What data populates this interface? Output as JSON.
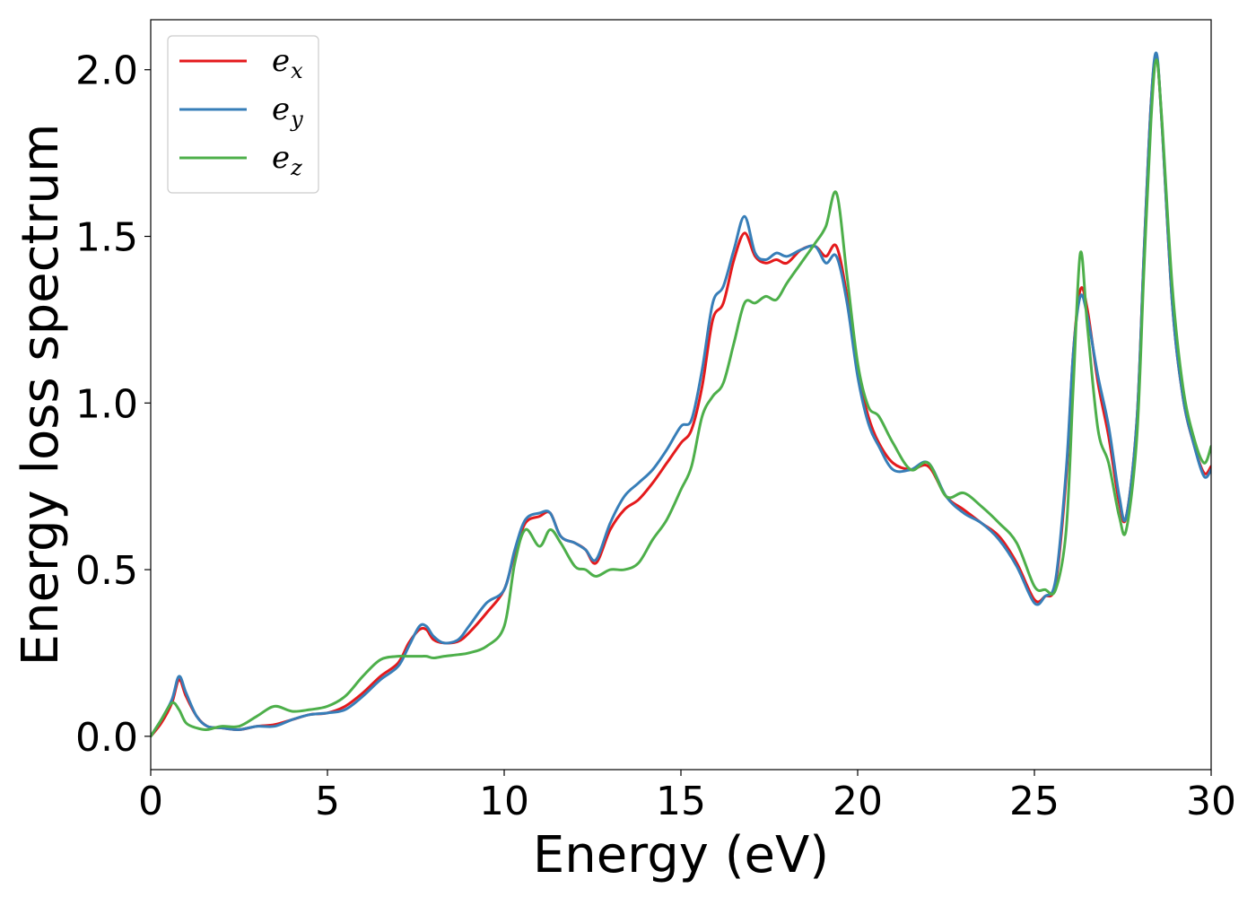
{
  "chart_data": {
    "type": "line",
    "xlabel": "Energy (eV)",
    "ylabel": "Energy loss spectrum",
    "xlim": [
      0,
      30
    ],
    "ylim": [
      -0.1,
      2.15
    ],
    "xticks": [
      0,
      5,
      10,
      15,
      20,
      25,
      30
    ],
    "xtick_labels": [
      "0",
      "5",
      "10",
      "15",
      "20",
      "25",
      "30"
    ],
    "yticks": [
      0.0,
      0.5,
      1.0,
      1.5,
      2.0
    ],
    "ytick_labels": [
      "0.0",
      "0.5",
      "1.0",
      "1.5",
      "2.0"
    ],
    "grid": false,
    "legend_position": "top-left",
    "series": [
      {
        "name": "e",
        "subscript": "x",
        "color": "#e41a1c",
        "x": [
          0,
          0.3,
          0.6,
          0.8,
          1.0,
          1.3,
          1.6,
          2.0,
          2.5,
          3.0,
          3.5,
          4.0,
          4.5,
          5.0,
          5.5,
          6.0,
          6.5,
          7.0,
          7.3,
          7.6,
          7.8,
          8.0,
          8.3,
          8.7,
          9.0,
          9.5,
          10.0,
          10.3,
          10.6,
          11.0,
          11.3,
          11.6,
          12.0,
          12.3,
          12.6,
          13.0,
          13.4,
          13.8,
          14.2,
          14.6,
          15.0,
          15.3,
          15.6,
          15.9,
          16.2,
          16.5,
          16.8,
          17.1,
          17.4,
          17.7,
          18.0,
          18.4,
          18.8,
          19.1,
          19.4,
          19.7,
          20.0,
          20.3,
          20.6,
          21.0,
          21.5,
          22.0,
          22.5,
          23.0,
          23.5,
          24.0,
          24.5,
          25.0,
          25.3,
          25.6,
          25.9,
          26.1,
          26.3,
          26.5,
          26.8,
          27.1,
          27.4,
          27.6,
          27.9,
          28.1,
          28.3,
          28.45,
          28.6,
          28.9,
          29.2,
          29.5,
          29.8,
          30.0
        ],
        "y": [
          0.0,
          0.04,
          0.1,
          0.17,
          0.12,
          0.06,
          0.03,
          0.025,
          0.02,
          0.03,
          0.035,
          0.05,
          0.065,
          0.07,
          0.09,
          0.13,
          0.18,
          0.22,
          0.28,
          0.32,
          0.32,
          0.29,
          0.28,
          0.285,
          0.31,
          0.37,
          0.44,
          0.55,
          0.64,
          0.66,
          0.67,
          0.6,
          0.58,
          0.56,
          0.52,
          0.62,
          0.68,
          0.71,
          0.76,
          0.82,
          0.88,
          0.92,
          1.05,
          1.25,
          1.3,
          1.43,
          1.51,
          1.44,
          1.42,
          1.43,
          1.42,
          1.46,
          1.47,
          1.44,
          1.47,
          1.32,
          1.1,
          0.96,
          0.88,
          0.82,
          0.8,
          0.81,
          0.72,
          0.68,
          0.64,
          0.6,
          0.52,
          0.41,
          0.42,
          0.46,
          0.78,
          1.15,
          1.34,
          1.28,
          1.06,
          0.9,
          0.7,
          0.66,
          0.95,
          1.45,
          1.9,
          2.04,
          1.85,
          1.3,
          1.02,
          0.88,
          0.79,
          0.81
        ]
      },
      {
        "name": "e",
        "subscript": "y",
        "color": "#377eb8",
        "x": [
          0,
          0.3,
          0.6,
          0.8,
          1.0,
          1.3,
          1.6,
          2.0,
          2.5,
          3.0,
          3.5,
          4.0,
          4.5,
          5.0,
          5.5,
          6.0,
          6.5,
          7.0,
          7.3,
          7.6,
          7.8,
          8.0,
          8.3,
          8.7,
          9.0,
          9.5,
          10.0,
          10.3,
          10.6,
          11.0,
          11.3,
          11.6,
          12.0,
          12.3,
          12.6,
          13.0,
          13.4,
          13.8,
          14.2,
          14.6,
          15.0,
          15.3,
          15.6,
          15.9,
          16.2,
          16.5,
          16.8,
          17.1,
          17.4,
          17.7,
          18.0,
          18.4,
          18.8,
          19.1,
          19.4,
          19.7,
          20.0,
          20.3,
          20.6,
          21.0,
          21.5,
          22.0,
          22.5,
          23.0,
          23.5,
          24.0,
          24.5,
          25.0,
          25.3,
          25.6,
          25.9,
          26.1,
          26.3,
          26.5,
          26.8,
          27.1,
          27.4,
          27.6,
          27.9,
          28.1,
          28.3,
          28.45,
          28.6,
          28.9,
          29.2,
          29.5,
          29.8,
          30.0
        ],
        "y": [
          0.0,
          0.05,
          0.11,
          0.18,
          0.13,
          0.06,
          0.03,
          0.025,
          0.02,
          0.03,
          0.03,
          0.05,
          0.065,
          0.07,
          0.08,
          0.12,
          0.17,
          0.21,
          0.27,
          0.33,
          0.33,
          0.3,
          0.28,
          0.29,
          0.33,
          0.4,
          0.44,
          0.56,
          0.65,
          0.67,
          0.67,
          0.6,
          0.58,
          0.56,
          0.53,
          0.64,
          0.72,
          0.76,
          0.8,
          0.86,
          0.93,
          0.95,
          1.1,
          1.3,
          1.35,
          1.46,
          1.56,
          1.45,
          1.43,
          1.45,
          1.44,
          1.46,
          1.47,
          1.42,
          1.44,
          1.3,
          1.08,
          0.94,
          0.87,
          0.8,
          0.8,
          0.82,
          0.72,
          0.67,
          0.64,
          0.59,
          0.51,
          0.4,
          0.42,
          0.47,
          0.8,
          1.15,
          1.32,
          1.26,
          1.08,
          0.93,
          0.72,
          0.66,
          0.95,
          1.45,
          1.9,
          2.05,
          1.85,
          1.3,
          1.02,
          0.88,
          0.78,
          0.8
        ]
      },
      {
        "name": "e",
        "subscript": "z",
        "color": "#4daf4a",
        "x": [
          0,
          0.3,
          0.6,
          0.8,
          1.0,
          1.3,
          1.6,
          2.0,
          2.5,
          3.0,
          3.5,
          4.0,
          4.5,
          5.0,
          5.5,
          6.0,
          6.5,
          7.0,
          7.3,
          7.6,
          7.8,
          8.0,
          8.3,
          8.7,
          9.0,
          9.5,
          10.0,
          10.3,
          10.6,
          11.0,
          11.3,
          11.6,
          12.0,
          12.3,
          12.6,
          13.0,
          13.4,
          13.8,
          14.2,
          14.6,
          15.0,
          15.3,
          15.6,
          15.9,
          16.2,
          16.5,
          16.8,
          17.1,
          17.4,
          17.7,
          18.0,
          18.4,
          18.8,
          19.1,
          19.4,
          19.7,
          20.0,
          20.3,
          20.6,
          21.0,
          21.5,
          22.0,
          22.5,
          23.0,
          23.5,
          24.0,
          24.5,
          25.0,
          25.3,
          25.6,
          25.9,
          26.1,
          26.3,
          26.5,
          26.8,
          27.1,
          27.4,
          27.6,
          27.9,
          28.1,
          28.3,
          28.45,
          28.6,
          28.9,
          29.2,
          29.5,
          29.8,
          30.0
        ],
        "y": [
          0.0,
          0.05,
          0.1,
          0.08,
          0.04,
          0.025,
          0.02,
          0.03,
          0.03,
          0.06,
          0.09,
          0.075,
          0.08,
          0.09,
          0.12,
          0.18,
          0.23,
          0.24,
          0.24,
          0.24,
          0.24,
          0.235,
          0.24,
          0.245,
          0.25,
          0.27,
          0.33,
          0.52,
          0.62,
          0.57,
          0.62,
          0.58,
          0.51,
          0.5,
          0.48,
          0.5,
          0.5,
          0.52,
          0.59,
          0.65,
          0.74,
          0.81,
          0.96,
          1.02,
          1.06,
          1.18,
          1.3,
          1.3,
          1.32,
          1.31,
          1.36,
          1.42,
          1.48,
          1.53,
          1.63,
          1.38,
          1.12,
          0.99,
          0.96,
          0.88,
          0.8,
          0.82,
          0.72,
          0.73,
          0.69,
          0.64,
          0.58,
          0.45,
          0.44,
          0.44,
          0.62,
          1.05,
          1.45,
          1.23,
          0.92,
          0.82,
          0.66,
          0.62,
          0.9,
          1.4,
          1.85,
          2.03,
          1.86,
          1.35,
          1.05,
          0.9,
          0.82,
          0.87
        ]
      }
    ]
  }
}
